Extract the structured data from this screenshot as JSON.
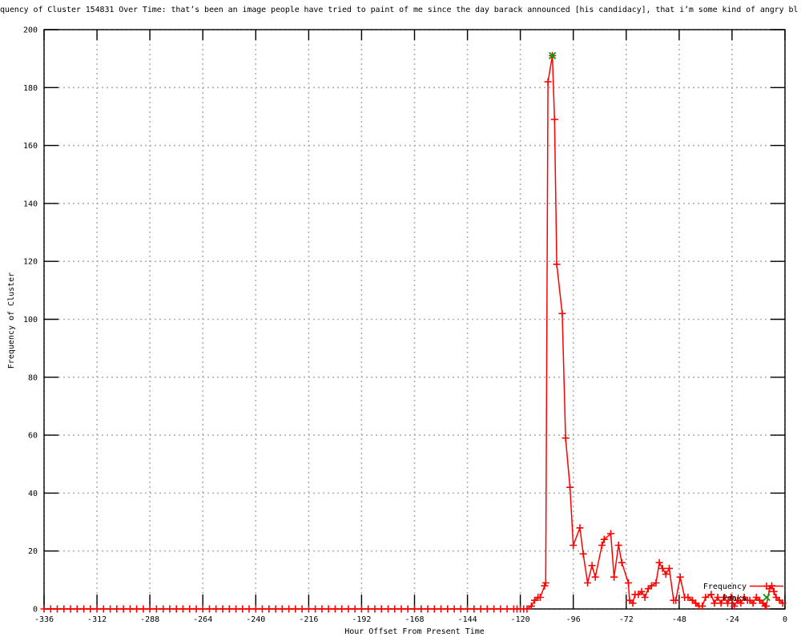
{
  "window": {
    "background": "#ffffff"
  },
  "chart_data": {
    "type": "line",
    "title": "quency of Cluster 154831 Over Time: that’s been an image people have tried to paint of me since the day barack announced [his candidacy], that i’m some kind of angry bl",
    "xlabel": "Hour Offset From Present Time",
    "ylabel": "Frequency of Cluster",
    "xlim": [
      -336,
      0
    ],
    "ylim": [
      0,
      200
    ],
    "xticks": [
      -336,
      -312,
      -288,
      -264,
      -240,
      -216,
      -192,
      -168,
      -144,
      -120,
      -96,
      -72,
      -48,
      -24,
      0
    ],
    "yticks": [
      0,
      20,
      40,
      60,
      80,
      100,
      120,
      140,
      160,
      180,
      200
    ],
    "grid": true,
    "legend": {
      "position": "inside-bottom-right",
      "entries": [
        {
          "label": "Frequency",
          "color": "#ff0000",
          "marker": "plus-with-line"
        },
        {
          "label": "Peaks",
          "color": "#00a000",
          "marker": "cross"
        }
      ]
    },
    "colors": {
      "frequency": "#ff0000",
      "peaks": "#00a000",
      "grid": "#b0b0b0",
      "axis": "#000000"
    },
    "series": [
      {
        "name": "Frequency",
        "style": "linespoints-plus",
        "color": "#ff0000",
        "points": [
          [
            -336,
            0
          ],
          [
            -333,
            0
          ],
          [
            -330,
            0
          ],
          [
            -327,
            0
          ],
          [
            -324,
            0
          ],
          [
            -321,
            0
          ],
          [
            -318,
            0
          ],
          [
            -315,
            0
          ],
          [
            -312,
            0
          ],
          [
            -309,
            0
          ],
          [
            -306,
            0
          ],
          [
            -303,
            0
          ],
          [
            -300,
            0
          ],
          [
            -297,
            0
          ],
          [
            -294,
            0
          ],
          [
            -291,
            0
          ],
          [
            -288,
            0
          ],
          [
            -285,
            0
          ],
          [
            -282,
            0
          ],
          [
            -279,
            0
          ],
          [
            -276,
            0
          ],
          [
            -273,
            0
          ],
          [
            -270,
            0
          ],
          [
            -267,
            0
          ],
          [
            -264,
            0
          ],
          [
            -261,
            0
          ],
          [
            -258,
            0
          ],
          [
            -255,
            0
          ],
          [
            -252,
            0
          ],
          [
            -249,
            0
          ],
          [
            -246,
            0
          ],
          [
            -243,
            0
          ],
          [
            -240,
            0
          ],
          [
            -237,
            0
          ],
          [
            -234,
            0
          ],
          [
            -231,
            0
          ],
          [
            -228,
            0
          ],
          [
            -225,
            0
          ],
          [
            -222,
            0
          ],
          [
            -219,
            0
          ],
          [
            -216,
            0
          ],
          [
            -213,
            0
          ],
          [
            -210,
            0
          ],
          [
            -207,
            0
          ],
          [
            -204,
            0
          ],
          [
            -201,
            0
          ],
          [
            -198,
            0
          ],
          [
            -195,
            0
          ],
          [
            -192,
            0
          ],
          [
            -189,
            0
          ],
          [
            -186,
            0
          ],
          [
            -183,
            0
          ],
          [
            -180,
            0
          ],
          [
            -177,
            0
          ],
          [
            -174,
            0
          ],
          [
            -171,
            0
          ],
          [
            -168,
            0
          ],
          [
            -165,
            0
          ],
          [
            -162,
            0
          ],
          [
            -159,
            0
          ],
          [
            -156,
            0
          ],
          [
            -153,
            0
          ],
          [
            -150,
            0
          ],
          [
            -147,
            0
          ],
          [
            -144,
            0
          ],
          [
            -141,
            0
          ],
          [
            -138,
            0
          ],
          [
            -135,
            0
          ],
          [
            -132,
            0
          ],
          [
            -129,
            0
          ],
          [
            -126,
            0
          ],
          [
            -123,
            0
          ],
          [
            -121.5,
            0
          ],
          [
            -120,
            0
          ],
          [
            -118.5,
            0
          ],
          [
            -117,
            0
          ],
          [
            -115,
            1
          ],
          [
            -113.5,
            3
          ],
          [
            -112,
            4
          ],
          [
            -111,
            4
          ],
          [
            -109,
            8
          ],
          [
            -108.5,
            9
          ],
          [
            -107.5,
            182
          ],
          [
            -105.5,
            191
          ],
          [
            -104.5,
            169
          ],
          [
            -103.5,
            119
          ],
          [
            -101,
            102
          ],
          [
            -99.5,
            59
          ],
          [
            -97.5,
            42
          ],
          [
            -96,
            22
          ],
          [
            -93,
            28
          ],
          [
            -91.5,
            19
          ],
          [
            -89.5,
            9
          ],
          [
            -87.5,
            15
          ],
          [
            -86,
            11
          ],
          [
            -83,
            22
          ],
          [
            -82,
            24
          ],
          [
            -79,
            26
          ],
          [
            -77.5,
            11
          ],
          [
            -75.5,
            22
          ],
          [
            -74,
            16
          ],
          [
            -71,
            9
          ],
          [
            -70.5,
            3
          ],
          [
            -69,
            2
          ],
          [
            -68,
            5
          ],
          [
            -66.5,
            5
          ],
          [
            -65,
            6
          ],
          [
            -63.5,
            4
          ],
          [
            -62,
            7
          ],
          [
            -60.5,
            8
          ],
          [
            -58.5,
            9
          ],
          [
            -57,
            16
          ],
          [
            -55.5,
            14
          ],
          [
            -54,
            12
          ],
          [
            -52.5,
            14
          ],
          [
            -50.5,
            3
          ],
          [
            -49.5,
            3
          ],
          [
            -47.5,
            11
          ],
          [
            -45.5,
            4
          ],
          [
            -44,
            4
          ],
          [
            -42,
            3
          ],
          [
            -40.5,
            2
          ],
          [
            -39,
            1
          ],
          [
            -37.5,
            1
          ],
          [
            -36,
            4
          ],
          [
            -33.5,
            5
          ],
          [
            -32,
            2
          ],
          [
            -30.5,
            4
          ],
          [
            -29,
            2
          ],
          [
            -27.5,
            4
          ],
          [
            -26,
            2
          ],
          [
            -24.5,
            4
          ],
          [
            -23,
            1
          ],
          [
            -21.5,
            3
          ],
          [
            -20,
            2
          ],
          [
            -18.5,
            4
          ],
          [
            -17,
            3
          ],
          [
            -16,
            3
          ],
          [
            -14.5,
            2
          ],
          [
            -13,
            4
          ],
          [
            -11.5,
            3
          ],
          [
            -10,
            2
          ],
          [
            -9,
            1
          ],
          [
            -8.5,
            1
          ],
          [
            -7,
            7
          ],
          [
            -6,
            8
          ],
          [
            -5,
            6
          ],
          [
            -4,
            4
          ],
          [
            -2.5,
            3
          ],
          [
            -1,
            2
          ]
        ]
      },
      {
        "name": "Peaks",
        "style": "points-cross",
        "color": "#00a000",
        "points": [
          [
            -105.5,
            191
          ]
        ]
      }
    ]
  }
}
